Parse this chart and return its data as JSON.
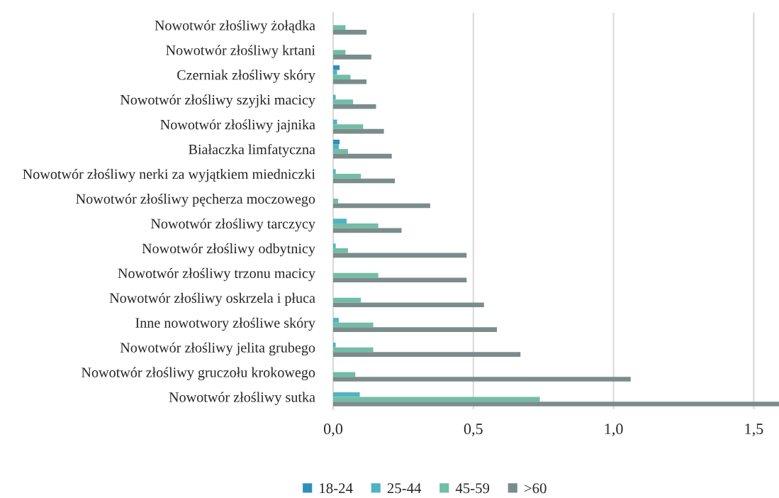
{
  "chart_data": {
    "type": "bar",
    "orientation": "horizontal",
    "categories": [
      "Nowotwór złośliwy żołądka",
      "Nowotwór złośliwy krtani",
      "Czerniak złośliwy skóry",
      "Nowotwór złośliwy szyjki macicy",
      "Nowotwór złośliwy jajnika",
      "Białaczka limfatyczna",
      "Nowotwór złośliwy nerki za wyjątkiem miedniczki",
      "Nowotwór złośliwy pęcherza moczowego",
      "Nowotwór złośliwy tarczycy",
      "Nowotwór złośliwy odbytnicy",
      "Nowotwór złośliwy trzonu macicy",
      "Nowotwór złośliwy oskrzela i płuca",
      "Inne nowotwory złośliwe skóry",
      "Nowotwór złośliwy jelita grubego",
      "Nowotwór złośliwy gruczołu krokowego",
      "Nowotwór złośliwy sutka"
    ],
    "series": [
      {
        "name": "18-24",
        "color": "#2e8fbd",
        "values": [
          null,
          null,
          0.023,
          null,
          null,
          0.023,
          null,
          null,
          null,
          null,
          null,
          null,
          null,
          null,
          null,
          null
        ]
      },
      {
        "name": "25-44",
        "color": "#4fb3c4",
        "values": [
          null,
          null,
          0.014,
          0.009,
          0.014,
          0.02,
          0.009,
          null,
          0.048,
          0.009,
          null,
          null,
          0.02,
          0.009,
          null,
          0.095
        ]
      },
      {
        "name": "45-59",
        "color": "#72bda6",
        "values": [
          0.044,
          0.044,
          0.062,
          0.071,
          0.107,
          0.053,
          0.099,
          0.018,
          0.161,
          0.053,
          0.161,
          0.099,
          0.143,
          0.143,
          0.079,
          0.737
        ]
      },
      {
        "name": ">60",
        "color": "#7a8c8c",
        "values": [
          0.119,
          0.136,
          0.119,
          0.153,
          0.181,
          0.209,
          0.22,
          0.346,
          0.244,
          0.476,
          0.476,
          0.538,
          0.584,
          0.668,
          1.061,
          1.59
        ]
      }
    ],
    "xlim": [
      0,
      1.59
    ],
    "xticks": [
      {
        "value": 0,
        "label": "0,0"
      },
      {
        "value": 0.5,
        "label": "0,5"
      },
      {
        "value": 1.0,
        "label": "1,0"
      },
      {
        "value": 1.5,
        "label": "1,5"
      }
    ],
    "grid": "x",
    "legend": "bottom"
  }
}
